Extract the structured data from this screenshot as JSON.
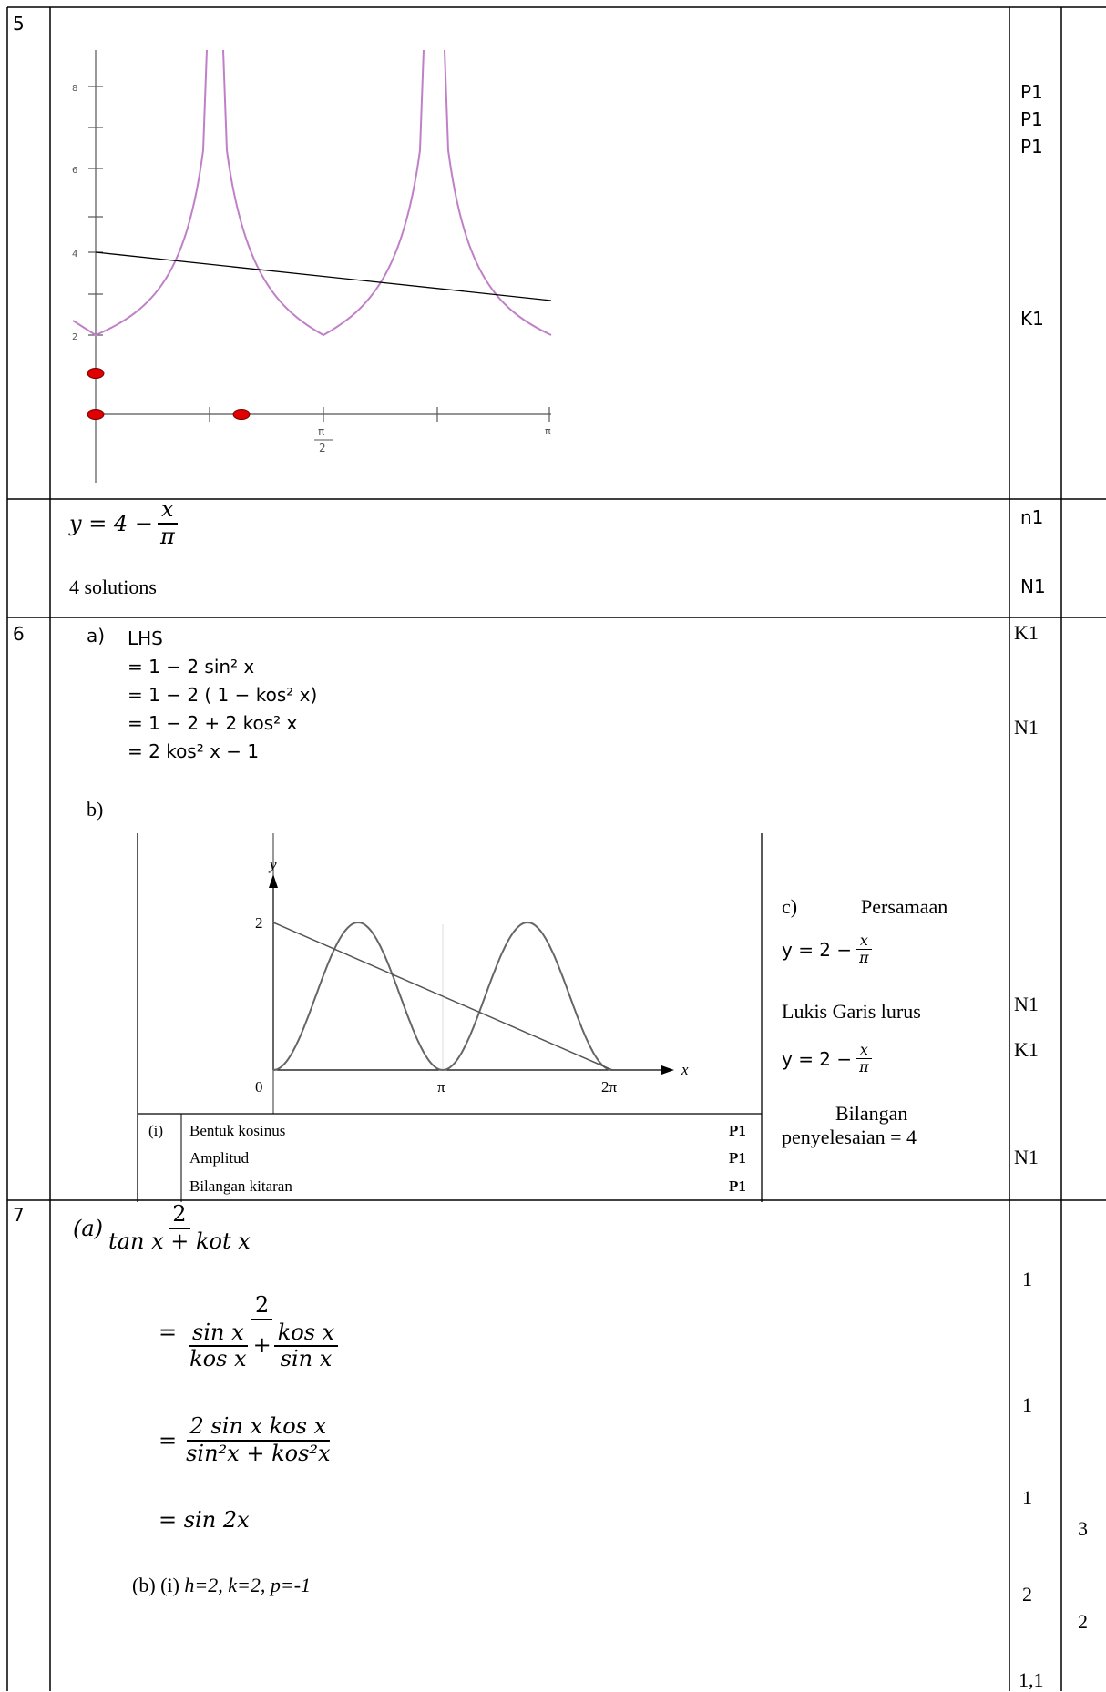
{
  "q5": {
    "number": "5",
    "graph": {
      "y_ticks": [
        "8",
        "6",
        "4",
        "2"
      ],
      "x_tick_pi_num": "π",
      "x_tick_pi_den": "2",
      "x_tick_end": "π"
    },
    "marks": [
      "P1",
      "P1",
      "P1",
      "K1"
    ],
    "eq": {
      "lhs": "y = 4 −",
      "num": "x",
      "den": "π"
    },
    "eq_mark": "n1",
    "solutions": "4 solutions",
    "solutions_mark": "N1"
  },
  "q6": {
    "number": "6",
    "part_a_label": "a)",
    "lines": [
      "LHS",
      "= 1 − 2 sin² x",
      "= 1 − 2 ( 1 − kos² x)",
      "= 1 − 2 + 2 kos² x",
      "= 2 kos² x − 1"
    ],
    "mark_k1": "K1",
    "mark_n1": "N1",
    "part_b_label": "b)",
    "graph": {
      "y_axis_label": "y",
      "x_axis_label": "x",
      "y_tick": "2",
      "x_ticks": [
        "0",
        "π",
        "2π"
      ]
    },
    "criteria": [
      {
        "num": "(i)",
        "text": "Bentuk kosinus",
        "mark": "P1"
      },
      {
        "num": "",
        "text": "Amplitud",
        "mark": "P1"
      },
      {
        "num": "",
        "text": "Bilangan kitaran",
        "mark": "P1"
      }
    ],
    "part_c": {
      "label": "c)",
      "title": "Persamaan",
      "eq1_lhs": "y = 2 −",
      "eq_num": "x",
      "eq_den": "π",
      "draw": "Lukis Garis lurus",
      "eq2_lhs": "y = 2 −",
      "count_line1": "Bilangan",
      "count_line2": "penyelesaian = 4"
    },
    "marks_c": [
      "N1",
      "K1",
      "N1"
    ]
  },
  "q7": {
    "number": "7",
    "a_label": "(a)",
    "frac1_num": "2",
    "frac1_den": "tan x + kot x",
    "eq_sign": "=",
    "frac2_num": "2",
    "frac2_a_num": "sin x",
    "frac2_a_den": "kos x",
    "plus": "+",
    "frac2_b_num": "kos x",
    "frac2_b_den": "sin x",
    "frac3_num": "2 sin x kos x",
    "frac3_den": "sin²x + kos²x",
    "result": "= sin 2x",
    "b_text_label": "(b)  (i) ",
    "b_text_vals": "h=2, k=2, p=-1",
    "marks": [
      "1",
      "1",
      "1",
      "2",
      "1,1"
    ],
    "totals": [
      "3",
      "2"
    ]
  }
}
